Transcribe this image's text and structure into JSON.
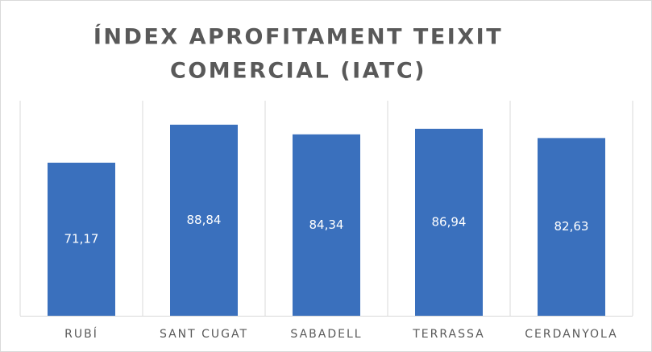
{
  "chart_data": {
    "type": "bar",
    "title": [
      "ÍNDEX APROFITAMENT TEIXIT",
      "COMERCIAL (IATC)"
    ],
    "categories": [
      "RUBÍ",
      "SANT CUGAT",
      "SABADELL",
      "TERRASSA",
      "CERDANYOLA"
    ],
    "values": [
      71.17,
      88.84,
      84.34,
      86.94,
      82.63
    ],
    "value_labels": [
      "71,17",
      "88,84",
      "84,34",
      "86,94",
      "82,63"
    ],
    "color": "#3a70bd",
    "ylim": [
      0,
      100
    ]
  }
}
